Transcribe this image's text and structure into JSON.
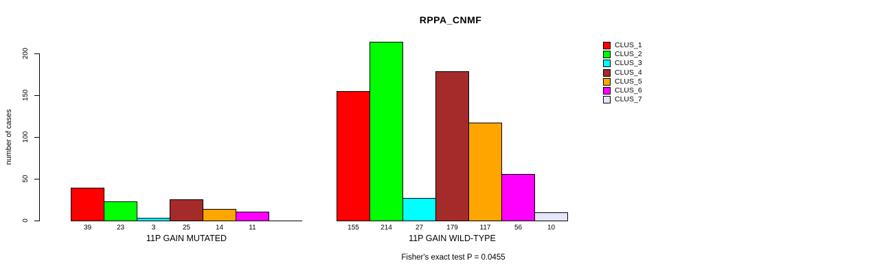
{
  "chart_data": {
    "type": "bar",
    "title": "RPPA_CNMF",
    "ylabel": "number of cases",
    "ylim": [
      0,
      200
    ],
    "y_ticks": [
      0,
      50,
      100,
      150,
      200
    ],
    "grid": false,
    "legend_position": "right",
    "annotation": "Fisher's exact test P = 0.0455",
    "categories": [
      "CLUS_1",
      "CLUS_2",
      "CLUS_3",
      "CLUS_4",
      "CLUS_5",
      "CLUS_6",
      "CLUS_7"
    ],
    "colors": [
      "#FF0000",
      "#00FF00",
      "#00FFFF",
      "#A52A2A",
      "#FFA500",
      "#FF00FF",
      "#E6E6FA"
    ],
    "groups": [
      {
        "label": "11P GAIN MUTATED",
        "values": [
          39,
          23,
          3,
          25,
          14,
          11,
          null
        ]
      },
      {
        "label": "11P GAIN WILD-TYPE",
        "values": [
          155,
          214,
          27,
          179,
          117,
          56,
          10
        ]
      }
    ]
  }
}
